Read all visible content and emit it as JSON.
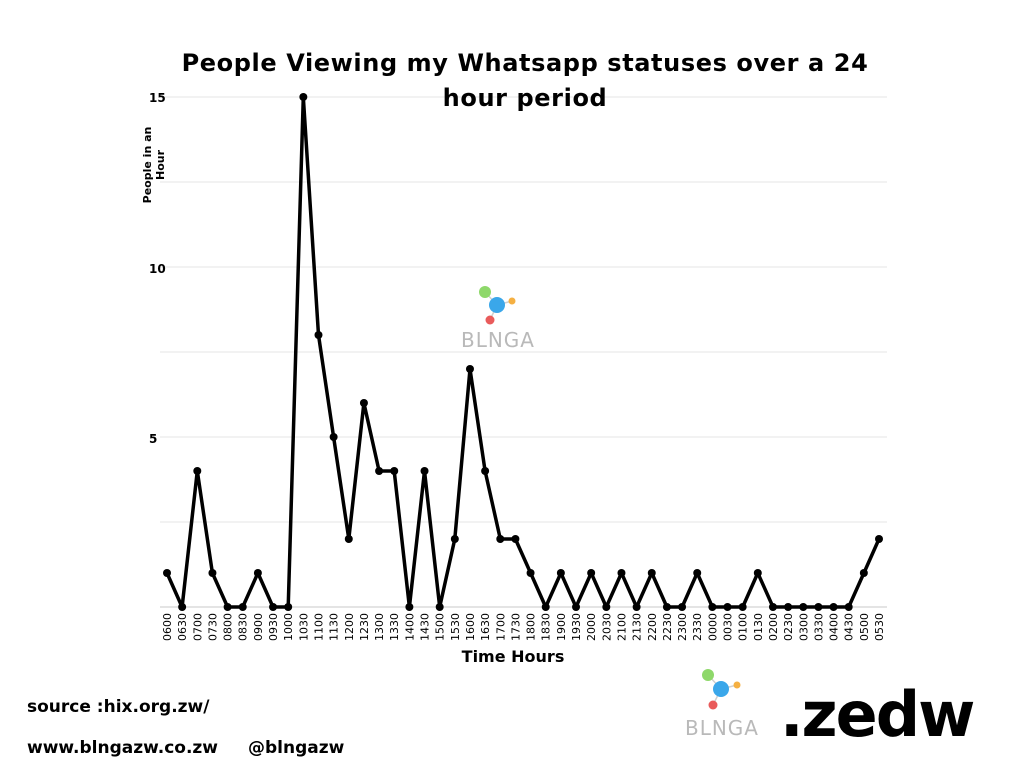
{
  "chart_data": {
    "type": "line",
    "title": "People Viewing my Whatsapp statuses over a 24 hour period",
    "xlabel": "Time Hours",
    "ylabel": "People in an Hour",
    "ylim": [
      0,
      15
    ],
    "yticks": [
      "15",
      "10",
      "5"
    ],
    "grid": true,
    "series_color": "#000000",
    "categories": [
      "0600",
      "0630",
      "0700",
      "0730",
      "0800",
      "0830",
      "0900",
      "0930",
      "1000",
      "1030",
      "1100",
      "1130",
      "1200",
      "1230",
      "1300",
      "1330",
      "1400",
      "1430",
      "1500",
      "1530",
      "1600",
      "1630",
      "1700",
      "1730",
      "1800",
      "1830",
      "1900",
      "1930",
      "2000",
      "2030",
      "2100",
      "2130",
      "2200",
      "2230",
      "2300",
      "2330",
      "0000",
      "0030",
      "0100",
      "0130",
      "0200",
      "0230",
      "0300",
      "0330",
      "0400",
      "0430",
      "0500",
      "0530"
    ],
    "values": [
      1,
      0,
      4,
      1,
      0,
      0,
      1,
      0,
      0,
      15,
      8,
      5,
      2,
      6,
      4,
      4,
      0,
      4,
      0,
      2,
      7,
      4,
      2,
      2,
      1,
      0,
      1,
      0,
      1,
      0,
      1,
      0,
      1,
      0,
      0,
      1,
      0,
      0,
      0,
      1,
      0,
      0,
      0,
      0,
      0,
      0,
      1,
      2
    ]
  },
  "watermark": {
    "text": "BLNGA"
  },
  "footer": {
    "source": "source :hix.org.zw/",
    "website": "www.blngazw.co.zw",
    "handle": "@blngazw",
    "brand_logo_text": "BLNGA",
    "brand_text": ".zedw"
  }
}
